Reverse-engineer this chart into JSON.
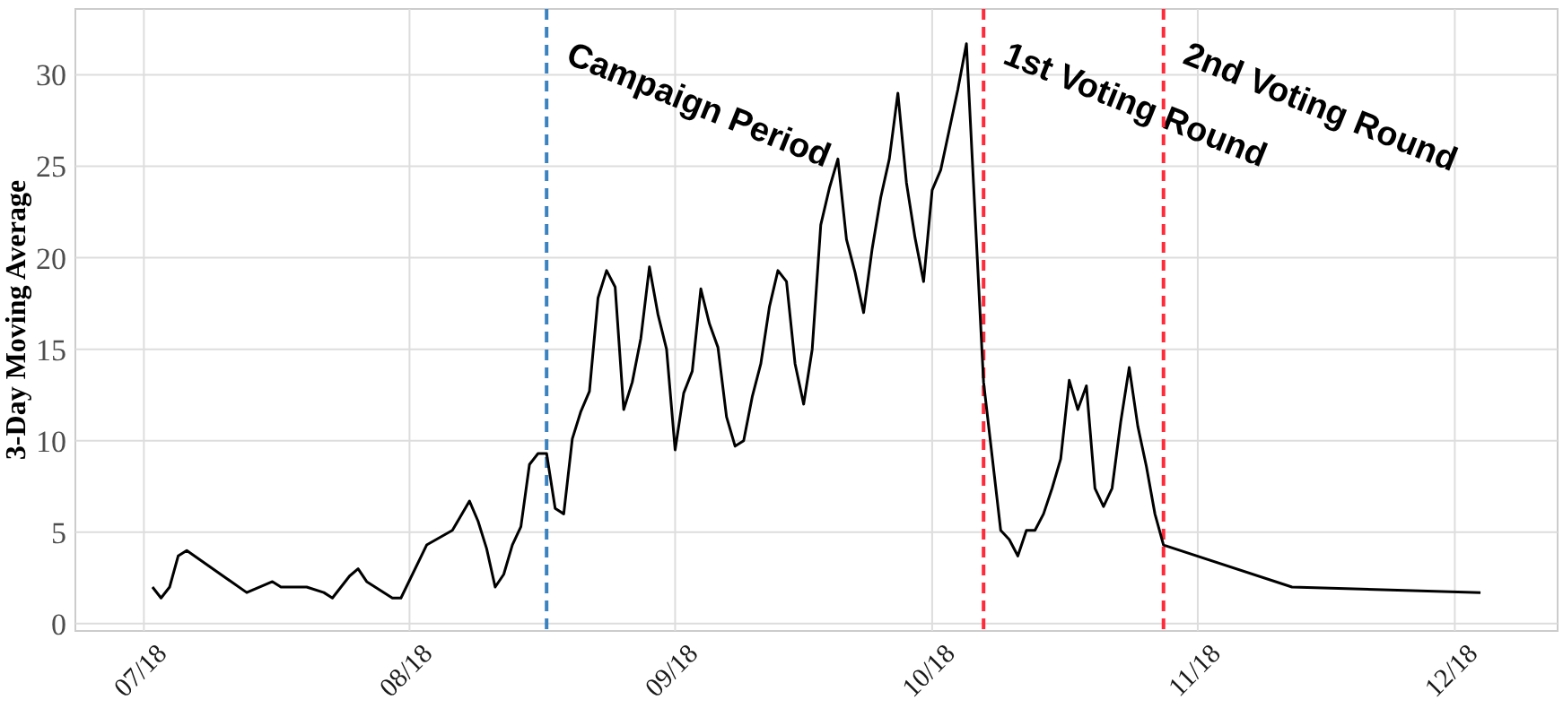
{
  "chart_data": {
    "type": "line",
    "ylabel": "3-Day Moving Average",
    "xlim": [
      "2018-06-23",
      "2018-12-13"
    ],
    "ylim": [
      -0.4,
      33.6
    ],
    "xticks": [
      {
        "value": "2018-07-01",
        "label": "07/18"
      },
      {
        "value": "2018-08-01",
        "label": "08/18"
      },
      {
        "value": "2018-09-01",
        "label": "09/18"
      },
      {
        "value": "2018-10-01",
        "label": "10/18"
      },
      {
        "value": "2018-11-01",
        "label": "11/18"
      },
      {
        "value": "2018-12-01",
        "label": "12/18"
      }
    ],
    "yticks": [
      0,
      5,
      10,
      15,
      20,
      25,
      30
    ],
    "grid": true,
    "marker": "none",
    "line_style": "solid",
    "x": [
      "2018-07-02",
      "2018-07-03",
      "2018-07-04",
      "2018-07-05",
      "2018-07-06",
      "2018-07-13",
      "2018-07-16",
      "2018-07-17",
      "2018-07-20",
      "2018-07-22",
      "2018-07-23",
      "2018-07-25",
      "2018-07-26",
      "2018-07-27",
      "2018-07-30",
      "2018-07-31",
      "2018-08-03",
      "2018-08-06",
      "2018-08-08",
      "2018-08-09",
      "2018-08-10",
      "2018-08-11",
      "2018-08-12",
      "2018-08-13",
      "2018-08-14",
      "2018-08-15",
      "2018-08-16",
      "2018-08-17",
      "2018-08-18",
      "2018-08-19",
      "2018-08-20",
      "2018-08-21",
      "2018-08-22",
      "2018-08-23",
      "2018-08-24",
      "2018-08-25",
      "2018-08-26",
      "2018-08-27",
      "2018-08-28",
      "2018-08-29",
      "2018-08-30",
      "2018-08-31",
      "2018-09-01",
      "2018-09-02",
      "2018-09-03",
      "2018-09-04",
      "2018-09-05",
      "2018-09-06",
      "2018-09-07",
      "2018-09-08",
      "2018-09-09",
      "2018-09-10",
      "2018-09-11",
      "2018-09-12",
      "2018-09-13",
      "2018-09-14",
      "2018-09-15",
      "2018-09-16",
      "2018-09-17",
      "2018-09-18",
      "2018-09-19",
      "2018-09-20",
      "2018-09-21",
      "2018-09-22",
      "2018-09-23",
      "2018-09-24",
      "2018-09-25",
      "2018-09-26",
      "2018-09-27",
      "2018-09-28",
      "2018-09-29",
      "2018-09-30",
      "2018-10-01",
      "2018-10-02",
      "2018-10-03",
      "2018-10-04",
      "2018-10-05",
      "2018-10-07",
      "2018-10-09",
      "2018-10-10",
      "2018-10-11",
      "2018-10-12",
      "2018-10-13",
      "2018-10-14",
      "2018-10-15",
      "2018-10-16",
      "2018-10-17",
      "2018-10-18",
      "2018-10-19",
      "2018-10-20",
      "2018-10-21",
      "2018-10-22",
      "2018-10-23",
      "2018-10-24",
      "2018-10-25",
      "2018-10-26",
      "2018-10-27",
      "2018-10-28",
      "2018-11-12",
      "2018-12-04"
    ],
    "series": [
      {
        "color": "#000000",
        "values": [
          2.0,
          1.4,
          2.0,
          3.7,
          4.0,
          1.7,
          2.3,
          2.0,
          2.0,
          1.7,
          1.4,
          2.6,
          3.0,
          2.3,
          1.4,
          1.4,
          4.3,
          5.1,
          6.7,
          5.6,
          4.1,
          2.0,
          2.7,
          4.3,
          5.3,
          8.7,
          9.3,
          9.3,
          6.3,
          6.0,
          10.1,
          11.6,
          12.7,
          17.8,
          19.3,
          18.4,
          11.7,
          13.2,
          15.6,
          19.5,
          16.9,
          15.0,
          9.5,
          12.6,
          13.8,
          18.3,
          16.4,
          15.1,
          11.3,
          9.7,
          10.0,
          12.4,
          14.2,
          17.3,
          19.3,
          18.7,
          14.2,
          12.0,
          15.0,
          21.8,
          23.8,
          25.4,
          21.0,
          19.2,
          17.0,
          20.5,
          23.3,
          25.4,
          29.0,
          24.1,
          21.1,
          18.7,
          23.7,
          24.8,
          27.0,
          29.2,
          31.7,
          13.2,
          5.1,
          4.6,
          3.7,
          5.1,
          5.1,
          6.0,
          7.4,
          9.0,
          13.3,
          11.7,
          13.0,
          7.4,
          6.4,
          7.4,
          11.0,
          14.0,
          10.8,
          8.6,
          6.0,
          4.3,
          2.0,
          1.7
        ]
      }
    ],
    "ref_lines": [
      {
        "axis": "x",
        "value": "2018-08-17",
        "label": "Campaign Period",
        "color": "#3b82c0",
        "line_style": "dashed"
      },
      {
        "axis": "x",
        "value": "2018-10-07",
        "label": "1st Voting Round",
        "color": "#ff2a3a",
        "line_style": "dashed"
      },
      {
        "axis": "x",
        "value": "2018-10-28",
        "label": "2nd Voting Round",
        "color": "#ff2a3a",
        "line_style": "dashed"
      }
    ]
  }
}
